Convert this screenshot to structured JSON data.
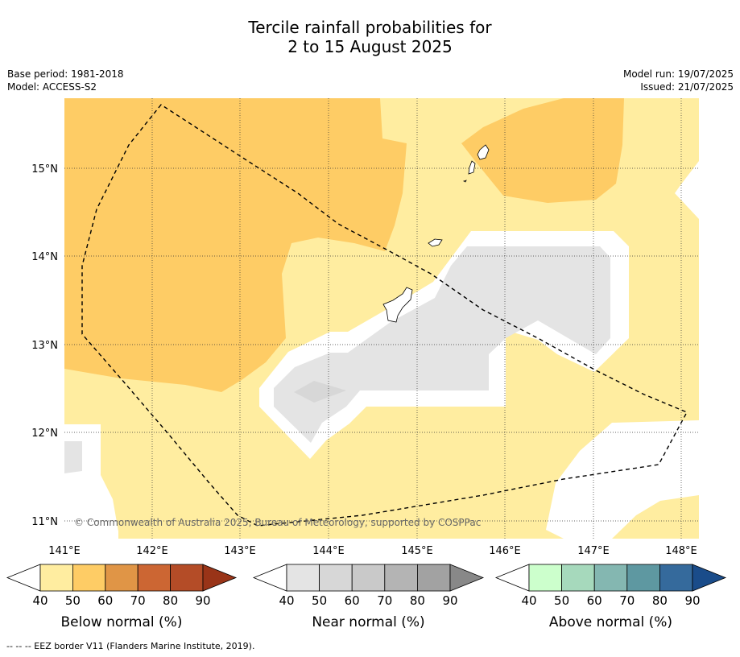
{
  "title_line1": "Tercile rainfall probabilities for",
  "title_line2": "2 to 15 August 2025",
  "meta_left": {
    "base_period": "Base period: 1981-2018",
    "model": "Model: ACCESS-S2"
  },
  "meta_right": {
    "model_run": "Model run: 19/07/2025",
    "issued": "Issued: 21/07/2025"
  },
  "lon_labels": [
    "141°E",
    "142°E",
    "143°E",
    "144°E",
    "145°E",
    "146°E",
    "147°E",
    "148°E"
  ],
  "lat_labels": [
    "15°N",
    "14°N",
    "13°N",
    "12°N",
    "11°N"
  ],
  "copyright": "© Commonwealth of Australia 2025, Bureau of Meteorology, supported by COSPPac",
  "colorbars": [
    {
      "label": "Below normal (%)",
      "ticks": [
        "40",
        "50",
        "60",
        "70",
        "80",
        "90"
      ],
      "colors": [
        "#ffeda0",
        "#fecc65",
        "#e09546",
        "#cc6633",
        "#b44c27",
        "#993418"
      ]
    },
    {
      "label": "Near normal (%)",
      "ticks": [
        "40",
        "50",
        "60",
        "70",
        "80",
        "90"
      ],
      "colors": [
        "#e4e4e4",
        "#d7d7d7",
        "#c9c9c9",
        "#b4b4b4",
        "#a2a2a2",
        "#888888"
      ]
    },
    {
      "label": "Above normal (%)",
      "ticks": [
        "40",
        "50",
        "60",
        "70",
        "80",
        "90"
      ],
      "colors": [
        "#ccffcc",
        "#a6d9bc",
        "#84b7b1",
        "#5e98a1",
        "#356a9c",
        "#1a4c8a"
      ]
    }
  ],
  "footer": "-- -- -- EEZ border V11 (Flanders Marine Institute, 2019)."
}
